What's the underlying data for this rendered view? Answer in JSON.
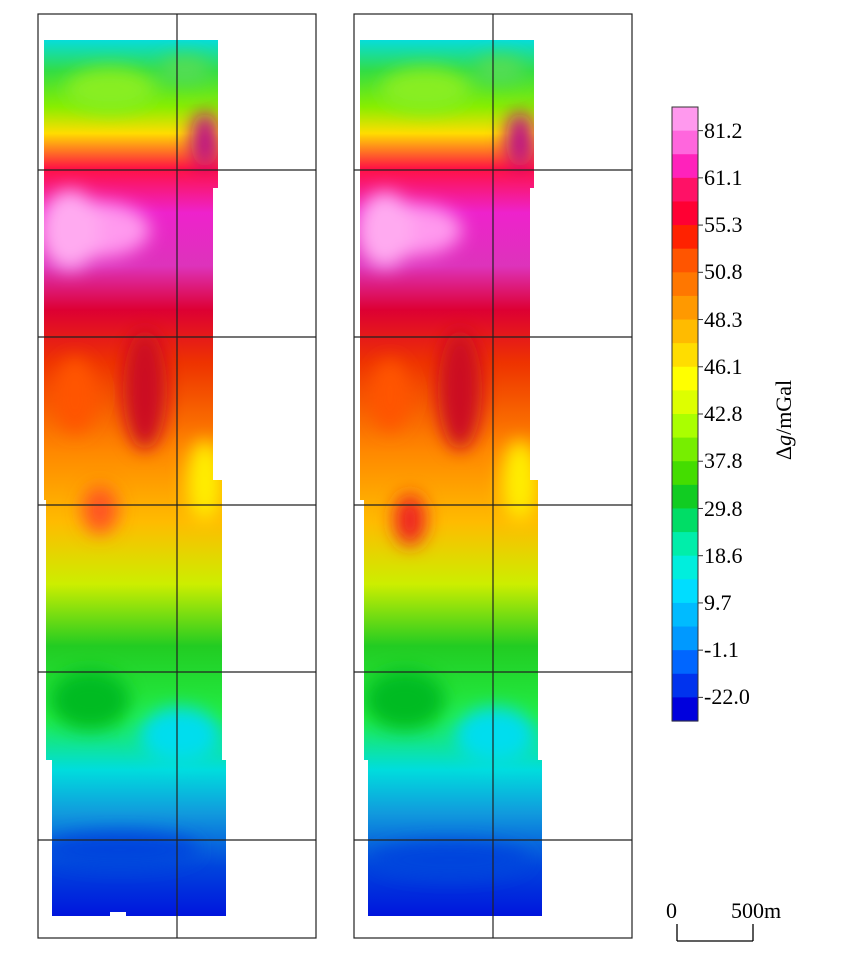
{
  "figure": {
    "panels": [
      {
        "name": "left-map"
      },
      {
        "name": "right-map"
      }
    ]
  },
  "colorbar": {
    "title_prefix": "Δ",
    "title_italic": "g",
    "title_unit": "/mGal",
    "labels": [
      "81.2",
      "61.1",
      "55.3",
      "50.8",
      "48.3",
      "46.1",
      "42.8",
      "37.8",
      "29.8",
      "18.6",
      "9.7",
      "-1.1",
      "-22.0"
    ],
    "colors": [
      "#ff99ee",
      "#ff66dd",
      "#ff22bb",
      "#ff1166",
      "#ff0033",
      "#ff2200",
      "#ff5500",
      "#ff7700",
      "#ff9900",
      "#ffbb00",
      "#ffdd00",
      "#ffff00",
      "#ddff00",
      "#aaff00",
      "#77ee00",
      "#44dd00",
      "#11cc22",
      "#00dd66",
      "#00eeaa",
      "#00eedd",
      "#00ddff",
      "#00bbff",
      "#0099ff",
      "#0066ff",
      "#0033ee",
      "#0000dd"
    ]
  },
  "scale_bar": {
    "start_label": "0",
    "end_label": "500m"
  }
}
